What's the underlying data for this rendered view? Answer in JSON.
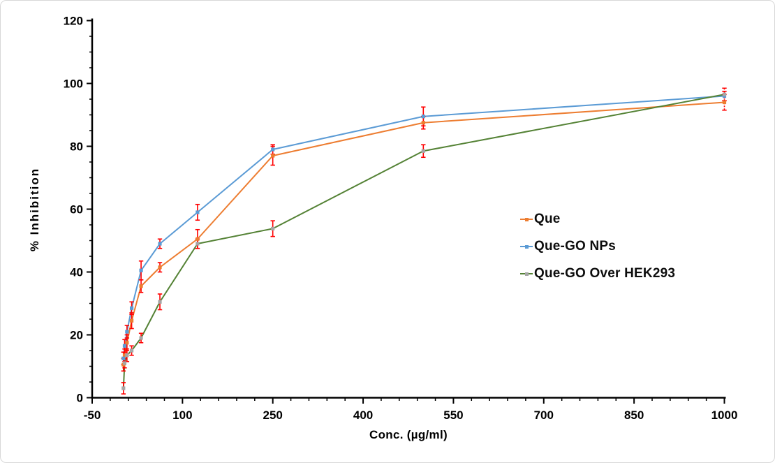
{
  "chart_data": {
    "type": "line",
    "title": "",
    "xlabel": "Conc. (µg/ml)",
    "ylabel": "% Inhibition",
    "grid": false,
    "legend_position": "middle-right",
    "xlim": [
      -50,
      1000
    ],
    "ylim": [
      0,
      120
    ],
    "axes": {
      "x_major_step": 150,
      "x_minor_step": 30,
      "y_major_step": 20,
      "y_minor_step": 5,
      "x_tick_labels": [
        "-50",
        "100",
        "250",
        "400",
        "550",
        "700",
        "850",
        "1000"
      ],
      "y_tick_labels": [
        "0",
        "20",
        "40",
        "60",
        "80",
        "100",
        "120"
      ]
    },
    "x": [
      1.95,
      3.9,
      7.8,
      15.6,
      31.25,
      62.5,
      125,
      250,
      500,
      1000
    ],
    "series": [
      {
        "name": "Que",
        "line_color": "#ED7D31",
        "marker_color": "#ED7D31",
        "values": [
          10.5,
          13.5,
          17.5,
          24.5,
          35.5,
          41.5,
          50.5,
          77,
          87.5,
          94
        ],
        "errors": [
          2,
          2,
          2.5,
          2.5,
          2,
          1.5,
          3,
          3,
          2,
          2.5
        ]
      },
      {
        "name": "Que-GO NPs",
        "line_color": "#5B9BD5",
        "marker_color": "#5B9BD5",
        "values": [
          12.5,
          16.5,
          21,
          28.5,
          40.5,
          49,
          59,
          79,
          89.5,
          96
        ],
        "errors": [
          2,
          2,
          2,
          2,
          3,
          1.5,
          2.5,
          1.5,
          3,
          1.5
        ]
      },
      {
        "name": "Que-GO Over HEK293",
        "line_color": "#548235",
        "marker_color": "#A6A6A6",
        "values": [
          3,
          11,
          13.5,
          15,
          19,
          30.5,
          49,
          53.8,
          78.5,
          96.5
        ],
        "errors": [
          1.8,
          1.5,
          2,
          1.5,
          1.5,
          2.5,
          1.5,
          2.5,
          2,
          2
        ]
      }
    ],
    "error_bar_color": "#FF0000",
    "axis_color": "#000000",
    "tick_label_color": "#000000"
  }
}
